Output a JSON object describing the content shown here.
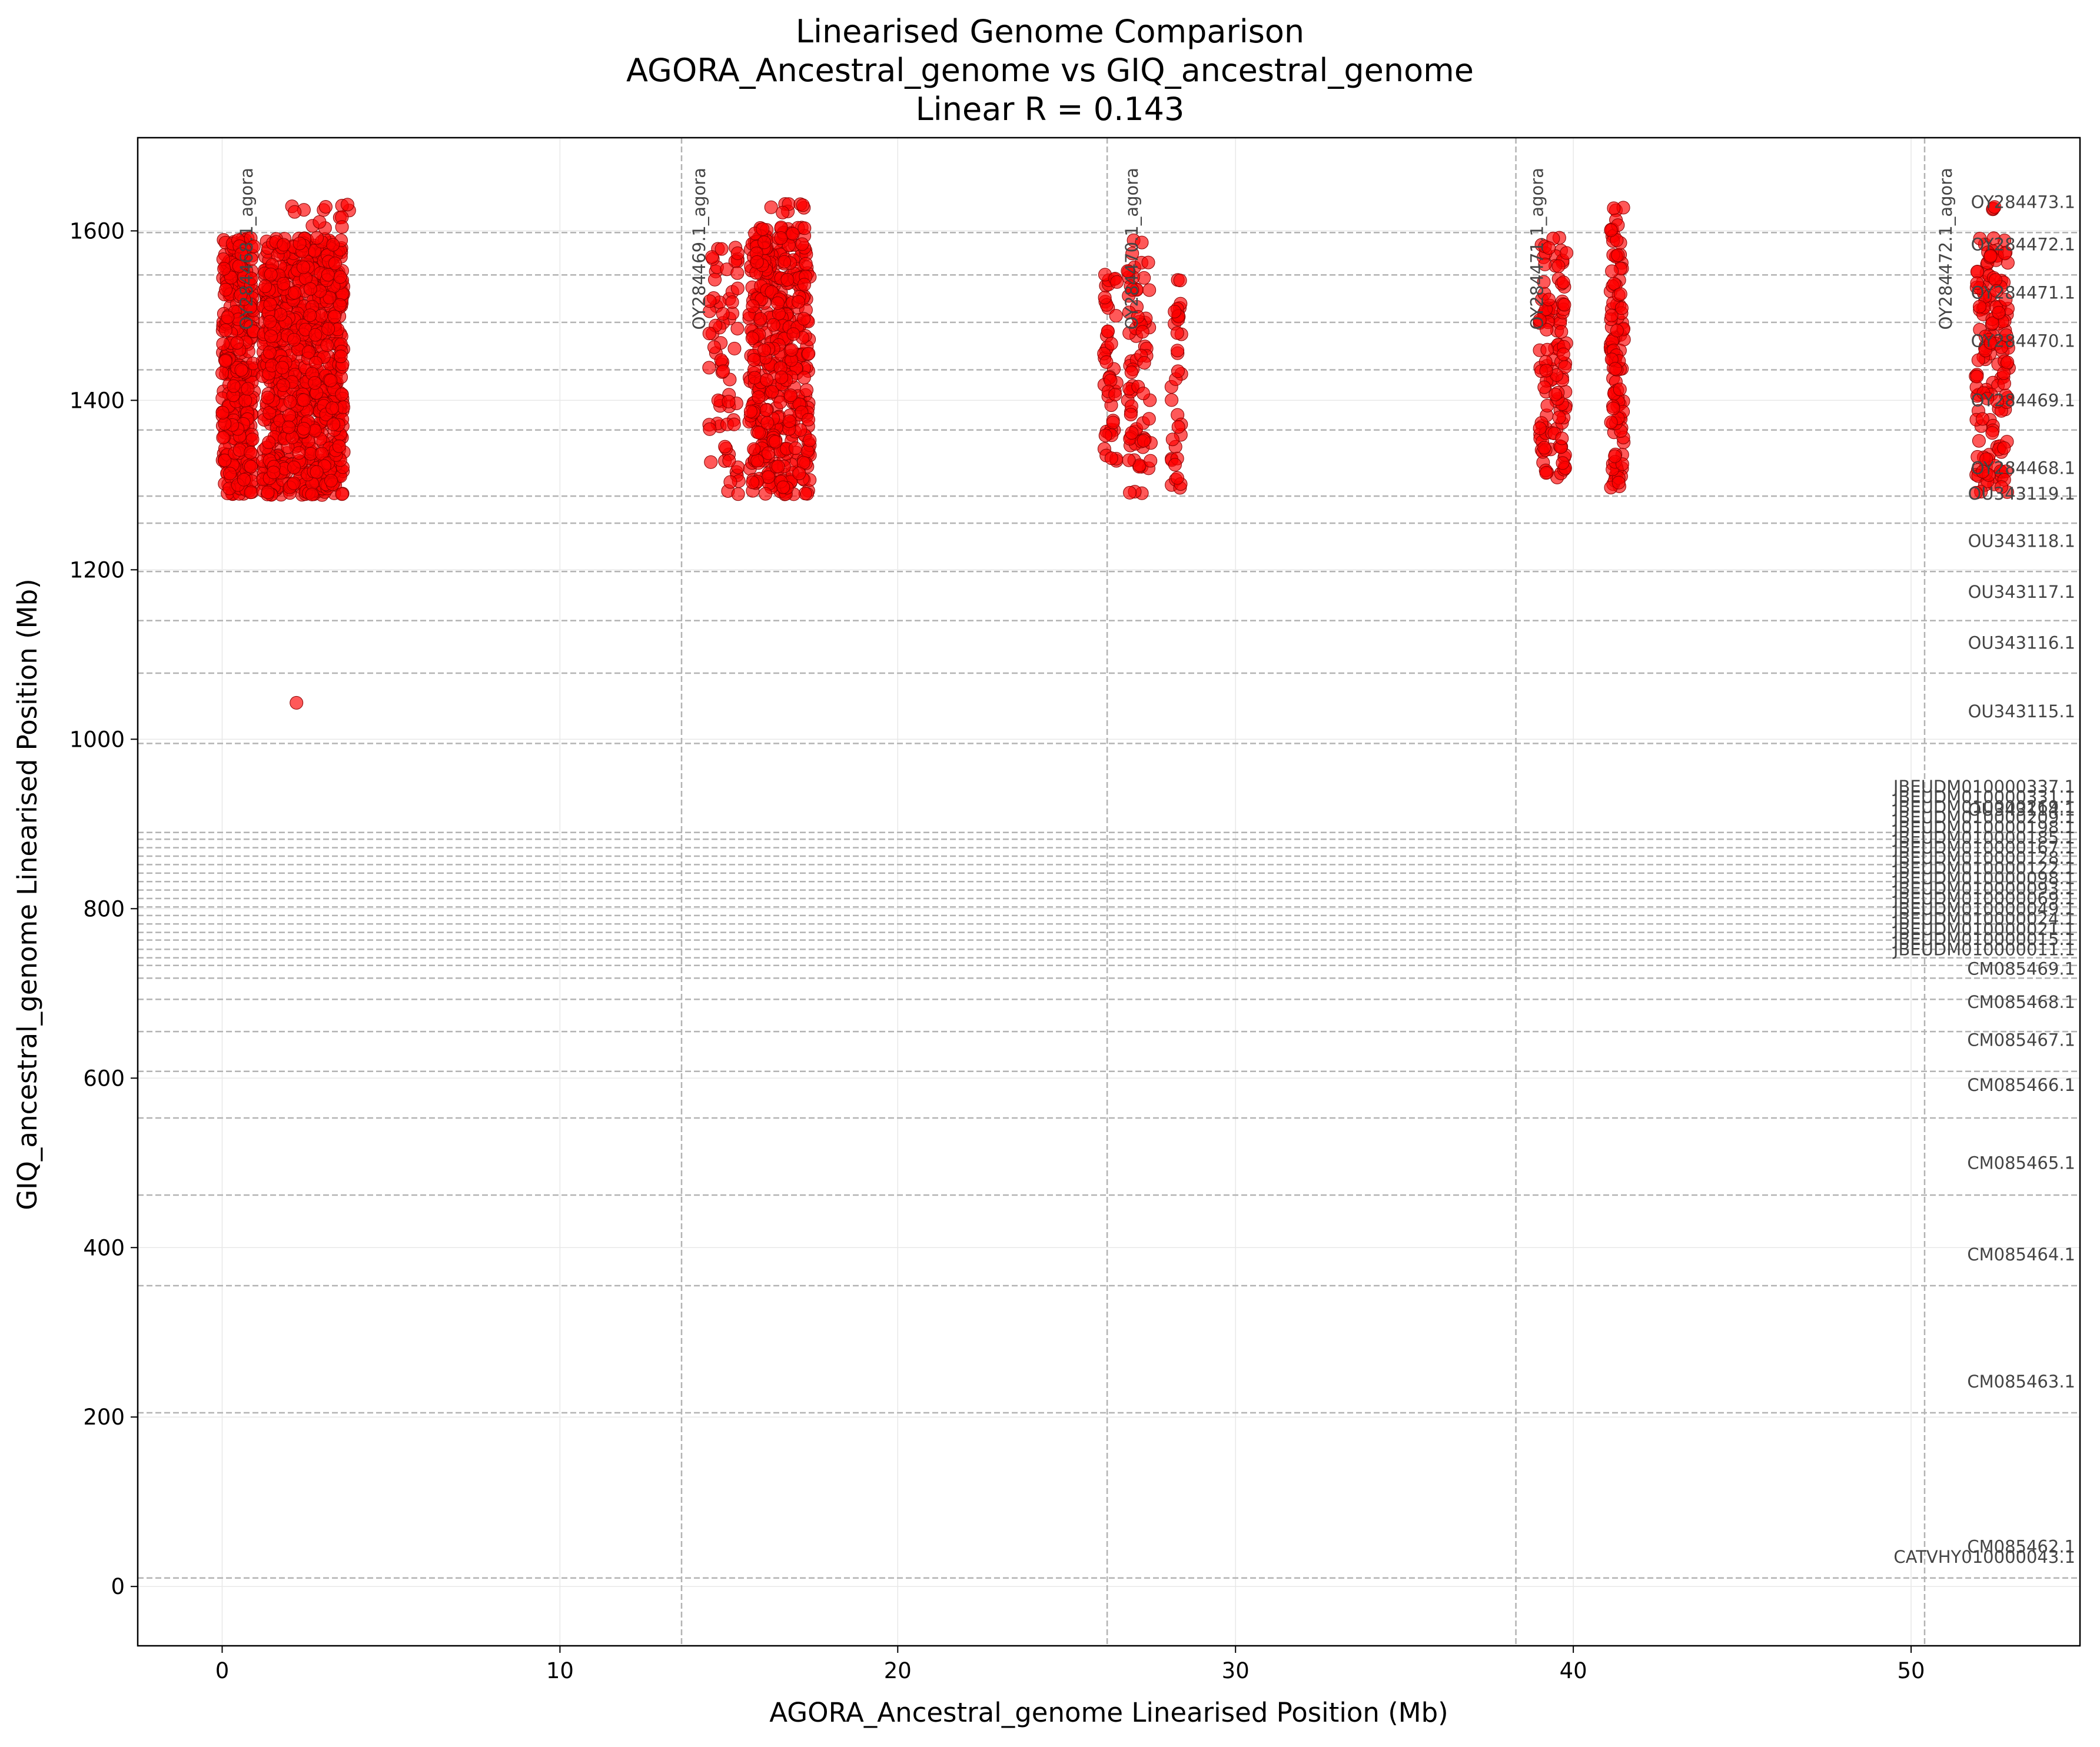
{
  "chart_data": {
    "type": "scatter",
    "title": [
      "Linearised Genome Comparison",
      "AGORA_Ancestral_genome vs GIQ_ancestral_genome",
      "Linear R = 0.143"
    ],
    "xlabel": "AGORA_Ancestral_genome Linearised Position (Mb)",
    "ylabel": "GIQ_ancestral_genome Linearised Position (Mb)",
    "xlim": [
      -2.5,
      55.0
    ],
    "ylim": [
      -70,
      1710
    ],
    "xticks": [
      0,
      10,
      20,
      30,
      40,
      50
    ],
    "yticks": [
      0,
      200,
      400,
      600,
      800,
      1000,
      1200,
      1400,
      1600
    ],
    "grid": true,
    "point_color": "#ff0000",
    "point_edge_color": "#8b0000",
    "reference_line_color": "#b3b3b3",
    "x_boundaries": [
      {
        "x": 13.6,
        "label": "OY284469.1_agora",
        "label_x": 14.3
      },
      {
        "x": 26.2,
        "label": "OY284470.1_agora",
        "label_x": 27.1
      },
      {
        "x": 38.3,
        "label": "OY284471.1_agora",
        "label_x": 39.1
      },
      {
        "x": 50.4,
        "label": "OY284472.1_agora",
        "label_x": 51.2
      },
      {
        "x": null,
        "label": "OY284468.1_agora",
        "label_x": 0.9
      }
    ],
    "y_boundaries": [
      {
        "y": 10,
        "label": "CATVHY010000043.1",
        "label_y": 28
      },
      {
        "y": 205,
        "label": "CM085462.1",
        "label_y": 40
      },
      {
        "y": 355,
        "label": "CM085463.1",
        "label_y": 235
      },
      {
        "y": 462,
        "label": "CM085464.1",
        "label_y": 385
      },
      {
        "y": 553,
        "label": "CM085465.1",
        "label_y": 493
      },
      {
        "y": 608,
        "label": "CM085466.1",
        "label_y": 585
      },
      {
        "y": 655,
        "label": "CM085467.1",
        "label_y": 638
      },
      {
        "y": 693,
        "label": "CM085468.1",
        "label_y": 683
      },
      {
        "y": 718,
        "label": "CM085469.1",
        "label_y": 722
      },
      {
        "y": 733,
        "label": "JBEUDM010000011.1",
        "label_y": 745
      },
      {
        "y": 742,
        "label": "JBEUDM010000015.1",
        "label_y": 757
      },
      {
        "y": 752,
        "label": "JBEUDM010000021.1",
        "label_y": 769
      },
      {
        "y": 763,
        "label": "JBEUDM010000024.1",
        "label_y": 781
      },
      {
        "y": 772,
        "label": "JBEUDM010000049.1",
        "label_y": 793
      },
      {
        "y": 782,
        "label": "JBEUDM010000069.1",
        "label_y": 805
      },
      {
        "y": 792,
        "label": "JBEUDM010000093.1",
        "label_y": 817
      },
      {
        "y": 802,
        "label": "JBEUDM010000098.1",
        "label_y": 829
      },
      {
        "y": 812,
        "label": "JBEUDM010000122.1",
        "label_y": 841
      },
      {
        "y": 822,
        "label": "JBEUDM010000128.1",
        "label_y": 853
      },
      {
        "y": 832,
        "label": "JBEUDM010000167.1",
        "label_y": 865
      },
      {
        "y": 842,
        "label": "JBEUDM010000185.1",
        "label_y": 877
      },
      {
        "y": 852,
        "label": "JBEUDM010000198.1",
        "label_y": 889
      },
      {
        "y": 862,
        "label": "JBEUDM010000209.1",
        "label_y": 901
      },
      {
        "y": 872,
        "label": "JBEUDM010000269.1",
        "label_y": 913
      },
      {
        "y": 882,
        "label": "JBEUDM010000331.1",
        "label_y": 925
      },
      {
        "y": 890,
        "label": "JBEUDM010000337.1",
        "label_y": 937
      },
      {
        "y": 995,
        "label": "OU343114.1",
        "label_y": 910
      },
      {
        "y": 1078,
        "label": "OU343115.1",
        "label_y": 1026
      },
      {
        "y": 1140,
        "label": "OU343116.1",
        "label_y": 1107
      },
      {
        "y": 1198,
        "label": "OU343117.1",
        "label_y": 1167
      },
      {
        "y": 1255,
        "label": "OU343118.1",
        "label_y": 1227
      },
      {
        "y": 1287,
        "label": "OU343119.1",
        "label_y": 1283
      },
      {
        "y": 1365,
        "label": "OY284468.1",
        "label_y": 1313
      },
      {
        "y": 1436,
        "label": "OY284469.1",
        "label_y": 1393
      },
      {
        "y": 1492,
        "label": "OY284470.1",
        "label_y": 1463
      },
      {
        "y": 1548,
        "label": "OY284471.1",
        "label_y": 1520
      },
      {
        "y": 1598,
        "label": "OY284472.1",
        "label_y": 1577
      },
      {
        "y": null,
        "label": "OY284473.1",
        "label_y": 1627
      }
    ],
    "clusters": [
      {
        "x_min": 0.0,
        "x_max": 0.95,
        "y_min": 1288,
        "y_max": 1592,
        "count": 380
      },
      {
        "x_min": 1.2,
        "x_max": 3.6,
        "y_min": 1288,
        "y_max": 1592,
        "count": 900
      },
      {
        "x_min": 2.0,
        "x_max": 3.8,
        "y_min": 1600,
        "y_max": 1632,
        "count": 14
      },
      {
        "x_min": 14.4,
        "x_max": 15.3,
        "y_min": 1288,
        "y_max": 1592,
        "count": 70
      },
      {
        "x_min": 15.6,
        "x_max": 17.4,
        "y_min": 1288,
        "y_max": 1605,
        "count": 460
      },
      {
        "x_min": 16.2,
        "x_max": 17.3,
        "y_min": 1620,
        "y_max": 1632,
        "count": 8
      },
      {
        "x_min": 26.1,
        "x_max": 26.5,
        "y_min": 1320,
        "y_max": 1555,
        "count": 45
      },
      {
        "x_min": 26.8,
        "x_max": 27.5,
        "y_min": 1290,
        "y_max": 1590,
        "count": 75
      },
      {
        "x_min": 28.1,
        "x_max": 28.4,
        "y_min": 1290,
        "y_max": 1555,
        "count": 35
      },
      {
        "x_min": 39.0,
        "x_max": 39.8,
        "y_min": 1305,
        "y_max": 1592,
        "count": 120
      },
      {
        "x_min": 41.1,
        "x_max": 41.5,
        "y_min": 1296,
        "y_max": 1632,
        "count": 110
      },
      {
        "x_min": 51.9,
        "x_max": 52.9,
        "y_min": 1290,
        "y_max": 1592,
        "count": 150
      },
      {
        "x_min": 52.4,
        "x_max": 52.7,
        "y_min": 1622,
        "y_max": 1632,
        "count": 3
      }
    ],
    "outliers": [
      {
        "x": 2.2,
        "y": 1043
      }
    ]
  }
}
